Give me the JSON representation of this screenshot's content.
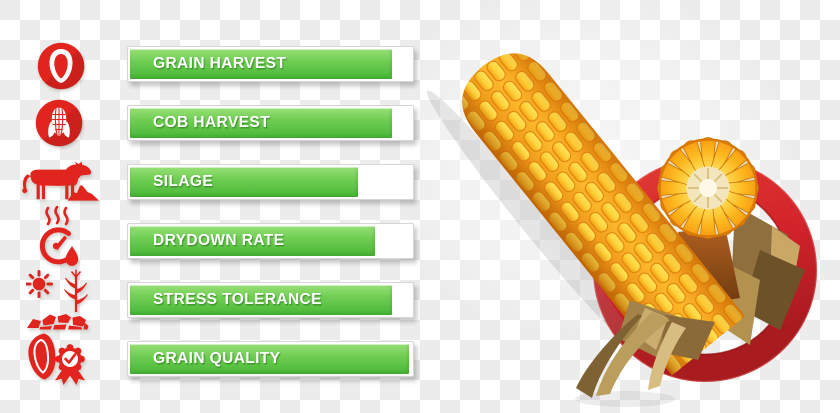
{
  "traits": [
    {
      "label": "GRAIN HARVEST",
      "value_pct": 92,
      "icon": "corn-kernel-icon"
    },
    {
      "label": "COB HARVEST",
      "value_pct": 92,
      "icon": "corn-cob-icon"
    },
    {
      "label": "SILAGE",
      "value_pct": 80,
      "icon": "cow-silage-icon"
    },
    {
      "label": "DRYDOWN RATE",
      "value_pct": 86,
      "icon": "drydown-gauge-icon"
    },
    {
      "label": "STRESS TOLERANCE",
      "value_pct": 92,
      "icon": "sun-drought-icon"
    },
    {
      "label": "GRAIN QUALITY",
      "value_pct": 98,
      "icon": "grain-quality-ribbon-icon"
    }
  ],
  "chart_data": {
    "type": "bar",
    "orientation": "horizontal",
    "categories": [
      "GRAIN HARVEST",
      "COB HARVEST",
      "SILAGE",
      "DRYDOWN RATE",
      "STRESS TOLERANCE",
      "GRAIN QUALITY"
    ],
    "values": [
      92,
      92,
      80,
      86,
      92,
      98
    ],
    "title": "",
    "xlabel": "",
    "ylabel": "",
    "xlim": [
      0,
      100
    ],
    "grid": false,
    "legend": false,
    "notes": "fill level of each green trait bar, estimated percent of track width"
  },
  "illustration": {
    "name": "corn-cob-in-red-ring",
    "elements": [
      "corn cob",
      "corn cross-section",
      "dried husk leaves",
      "red ring"
    ]
  },
  "colors": {
    "icon_red": "#e2241f",
    "ring_red": "#d2232a",
    "bar_green_light": "#98e076",
    "bar_green_dark": "#49b837",
    "kernel_yellow": "#ffd23a",
    "cob_orange": "#ee8c0f",
    "husk_tan": "#b3914f",
    "checker_gray": "#ececec"
  }
}
